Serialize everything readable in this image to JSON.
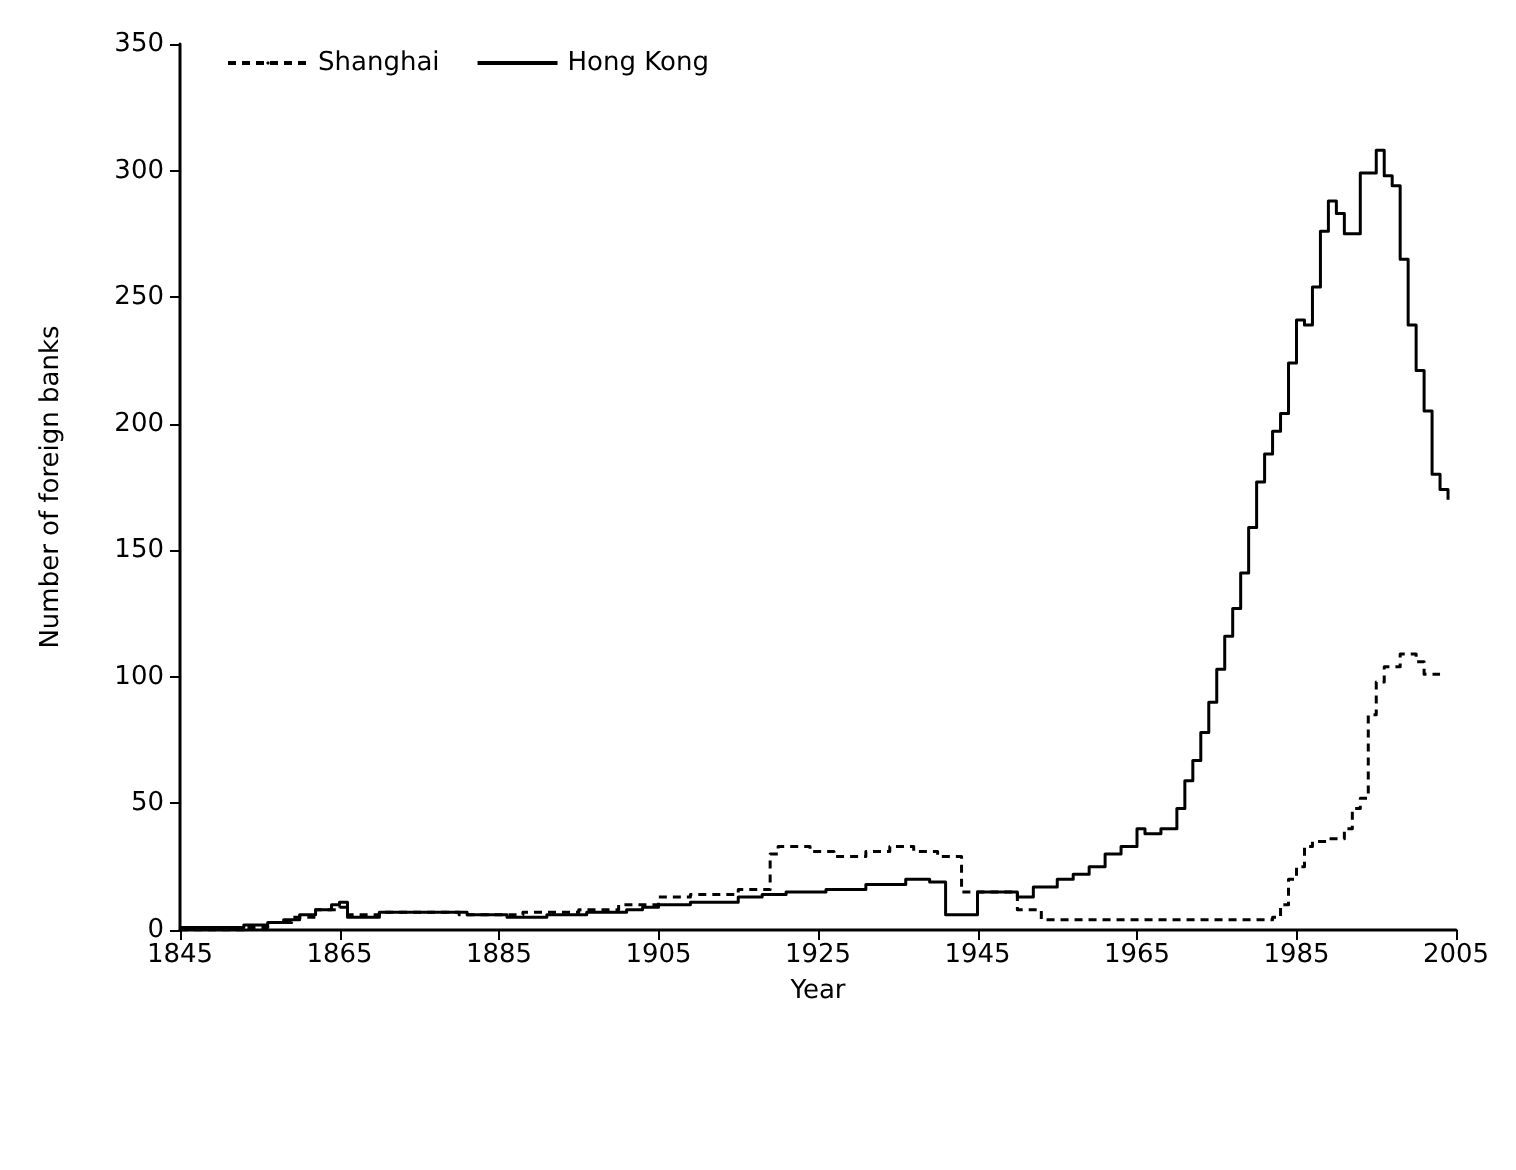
{
  "chart_data": {
    "type": "step",
    "xlabel": "Year",
    "ylabel": "Number of foreign banks",
    "xlim": [
      1845,
      2005
    ],
    "xticks": [
      1845,
      1865,
      1885,
      1905,
      1925,
      1945,
      1965,
      1985,
      2005
    ],
    "ylim": [
      0,
      350
    ],
    "yticks": [
      0,
      50,
      100,
      150,
      200,
      250,
      300,
      350
    ],
    "grid": false,
    "legend": "top left",
    "marker": "none",
    "series": [
      {
        "name": "Shanghai",
        "color": "#000000",
        "line_style": "dashed",
        "x": [
          1845,
          1853,
          1856,
          1859,
          1862,
          1865,
          1866,
          1870,
          1880,
          1888,
          1895,
          1900,
          1905,
          1909,
          1915,
          1919,
          1920,
          1924,
          1927,
          1931,
          1934,
          1937,
          1940,
          1943,
          1950,
          1953,
          1982,
          1983,
          1984,
          1985,
          1986,
          1987,
          1989,
          1991,
          1992,
          1993,
          1994,
          1995,
          1996,
          1998,
          2000,
          2001,
          2003
        ],
        "values": [
          0,
          1,
          3,
          5,
          8,
          9,
          6,
          7,
          6,
          7,
          8,
          10,
          13,
          14,
          16,
          30,
          33,
          31,
          29,
          31,
          33,
          31,
          29,
          15,
          8,
          4,
          5,
          10,
          20,
          25,
          33,
          35,
          36,
          40,
          48,
          52,
          85,
          98,
          104,
          109,
          106,
          101,
          101
        ]
      },
      {
        "name": "Hong Kong",
        "color": "#000000",
        "line_style": "solid",
        "x": [
          1845,
          1853,
          1856,
          1858,
          1860,
          1862,
          1864,
          1865,
          1866,
          1870,
          1881,
          1886,
          1891,
          1896,
          1901,
          1903,
          1905,
          1909,
          1915,
          1918,
          1921,
          1926,
          1931,
          1936,
          1939,
          1941,
          1945,
          1950,
          1952,
          1955,
          1957,
          1959,
          1961,
          1963,
          1965,
          1966,
          1968,
          1970,
          1971,
          1972,
          1973,
          1974,
          1975,
          1976,
          1977,
          1978,
          1979,
          1980,
          1981,
          1982,
          1983,
          1984,
          1985,
          1986,
          1987,
          1988,
          1989,
          1990,
          1991,
          1993,
          1995,
          1996,
          1997,
          1998,
          1999,
          2000,
          2001,
          2002,
          2003,
          2004
        ],
        "values": [
          1,
          2,
          3,
          4,
          6,
          8,
          10,
          11,
          5,
          7,
          6,
          5,
          6,
          7,
          8,
          9,
          10,
          11,
          13,
          14,
          15,
          16,
          18,
          20,
          19,
          6,
          15,
          13,
          17,
          20,
          22,
          25,
          30,
          33,
          40,
          38,
          40,
          48,
          59,
          67,
          78,
          90,
          103,
          116,
          127,
          141,
          159,
          177,
          188,
          197,
          204,
          224,
          241,
          239,
          254,
          276,
          288,
          283,
          275,
          299,
          308,
          298,
          294,
          265,
          239,
          221,
          205,
          180,
          174,
          170
        ]
      }
    ]
  }
}
